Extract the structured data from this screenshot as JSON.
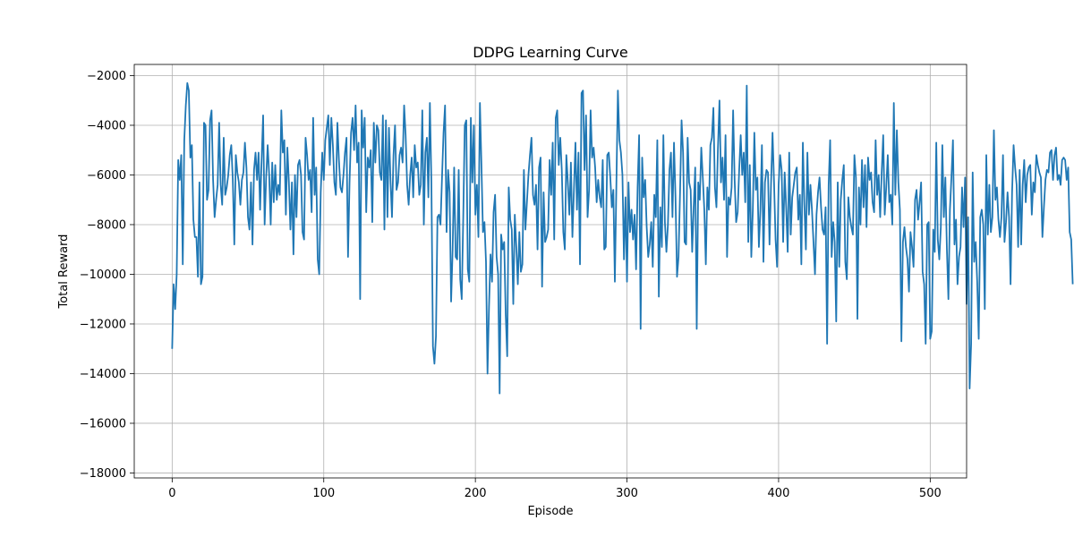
{
  "chart_data": {
    "type": "line",
    "title": "DDPG Learning Curve",
    "xlabel": "Episode",
    "ylabel": "Total Reward",
    "xlim": [
      -25,
      524
    ],
    "ylim": [
      -18200,
      -1550
    ],
    "xticks": [
      0,
      100,
      200,
      300,
      400,
      500
    ],
    "yticks": [
      -18000,
      -16000,
      -14000,
      -12000,
      -10000,
      -8000,
      -6000,
      -4000,
      -2000
    ],
    "grid": true,
    "legend": "none",
    "series": [
      {
        "color": "#1f77b4",
        "x_start": 0,
        "x_step": 1,
        "values": [
          -13000,
          -10400,
          -11400,
          -10000,
          -5400,
          -6200,
          -5200,
          -9600,
          -4600,
          -3200,
          -2300,
          -2600,
          -5300,
          -4800,
          -7800,
          -8500,
          -8500,
          -10100,
          -6300,
          -10400,
          -10100,
          -3900,
          -4000,
          -7000,
          -6600,
          -3800,
          -3400,
          -6200,
          -7700,
          -7000,
          -6400,
          -3900,
          -6400,
          -7200,
          -4500,
          -6800,
          -6500,
          -6000,
          -5200,
          -4800,
          -6200,
          -8800,
          -5200,
          -5900,
          -6300,
          -7200,
          -6200,
          -5900,
          -4700,
          -5700,
          -7700,
          -8200,
          -6300,
          -8800,
          -5800,
          -5100,
          -6200,
          -5100,
          -7400,
          -5400,
          -3600,
          -8000,
          -6100,
          -4800,
          -6000,
          -8000,
          -5500,
          -7100,
          -5600,
          -7000,
          -6400,
          -6800,
          -3400,
          -5100,
          -4600,
          -7600,
          -4900,
          -6300,
          -8200,
          -6300,
          -9200,
          -6000,
          -7700,
          -5600,
          -5400,
          -6000,
          -8300,
          -8600,
          -4500,
          -5200,
          -6200,
          -5800,
          -7500,
          -3700,
          -6800,
          -5700,
          -9400,
          -10000,
          -6700,
          -5100,
          -6200,
          -4600,
          -4100,
          -3600,
          -5600,
          -3700,
          -4800,
          -6300,
          -6800,
          -3900,
          -5400,
          -6500,
          -6700,
          -6000,
          -5100,
          -4500,
          -9300,
          -6300,
          -4300,
          -3700,
          -5000,
          -3200,
          -5500,
          -4700,
          -11000,
          -3400,
          -4900,
          -3700,
          -7500,
          -5300,
          -5700,
          -5000,
          -7900,
          -3900,
          -5500,
          -4000,
          -4200,
          -5900,
          -6200,
          -3600,
          -8200,
          -3800,
          -7700,
          -4100,
          -6200,
          -7700,
          -5200,
          -4000,
          -6600,
          -6300,
          -5200,
          -4900,
          -5500,
          -3200,
          -4400,
          -6400,
          -7200,
          -6000,
          -5300,
          -6900,
          -4800,
          -5700,
          -5500,
          -6800,
          -6400,
          -3400,
          -8000,
          -5100,
          -4500,
          -6900,
          -3100,
          -6300,
          -12900,
          -13600,
          -12500,
          -7700,
          -7600,
          -8000,
          -6100,
          -4300,
          -3200,
          -8300,
          -5800,
          -6700,
          -11100,
          -9000,
          -5700,
          -9300,
          -9400,
          -5800,
          -10200,
          -11000,
          -7700,
          -4000,
          -3800,
          -9800,
          -10300,
          -3700,
          -6300,
          -4000,
          -7600,
          -6400,
          -8500,
          -3100,
          -5600,
          -8300,
          -7900,
          -9500,
          -14000,
          -11300,
          -9200,
          -10300,
          -7500,
          -6800,
          -9300,
          -10000,
          -14800,
          -8400,
          -9000,
          -8700,
          -11600,
          -13300,
          -6500,
          -7800,
          -8200,
          -11200,
          -7600,
          -8900,
          -10400,
          -8300,
          -9900,
          -9600,
          -5800,
          -8200,
          -7100,
          -6000,
          -5200,
          -4500,
          -6800,
          -7200,
          -6400,
          -9000,
          -5700,
          -5300,
          -10500,
          -6700,
          -8700,
          -8500,
          -8200,
          -5400,
          -6800,
          -4700,
          -8600,
          -3700,
          -3400,
          -5600,
          -4500,
          -5800,
          -8300,
          -9000,
          -5200,
          -6300,
          -7600,
          -5500,
          -8500,
          -6600,
          -4700,
          -7400,
          -5100,
          -9600,
          -2700,
          -2600,
          -5800,
          -3600,
          -7700,
          -6600,
          -3400,
          -5300,
          -4900,
          -5700,
          -7100,
          -6200,
          -6900,
          -7300,
          -5400,
          -9000,
          -8900,
          -5200,
          -5100,
          -6100,
          -7300,
          -6600,
          -10300,
          -6400,
          -2600,
          -4600,
          -5100,
          -6000,
          -9400,
          -6900,
          -10300,
          -6300,
          -8300,
          -7400,
          -8600,
          -7600,
          -9800,
          -6500,
          -4400,
          -12200,
          -5300,
          -6900,
          -6200,
          -8100,
          -9300,
          -8800,
          -7900,
          -9700,
          -6800,
          -7700,
          -4600,
          -10900,
          -7300,
          -8900,
          -4400,
          -7900,
          -9100,
          -8000,
          -5800,
          -5100,
          -7700,
          -4700,
          -6900,
          -10100,
          -9300,
          -6700,
          -3800,
          -5100,
          -8700,
          -8800,
          -4500,
          -6300,
          -6600,
          -9100,
          -7300,
          -5700,
          -12200,
          -6300,
          -7000,
          -4900,
          -6100,
          -7400,
          -9600,
          -6500,
          -7400,
          -4800,
          -4500,
          -3300,
          -6500,
          -7300,
          -4900,
          -3000,
          -6300,
          -5300,
          -7000,
          -4400,
          -9300,
          -6900,
          -7200,
          -6500,
          -3400,
          -6200,
          -7900,
          -7500,
          -5800,
          -4400,
          -6000,
          -5100,
          -7100,
          -2400,
          -8700,
          -5600,
          -9300,
          -7400,
          -4300,
          -6600,
          -6100,
          -8900,
          -7400,
          -4800,
          -9500,
          -6300,
          -5800,
          -5900,
          -8800,
          -6400,
          -4300,
          -6300,
          -8600,
          -9700,
          -6400,
          -5200,
          -5800,
          -8700,
          -5900,
          -7300,
          -9100,
          -5100,
          -8400,
          -6900,
          -6400,
          -5900,
          -5700,
          -7800,
          -6800,
          -9600,
          -4700,
          -7200,
          -9000,
          -5100,
          -7600,
          -6400,
          -7400,
          -8700,
          -10000,
          -7600,
          -6700,
          -6100,
          -7300,
          -8200,
          -8400,
          -7300,
          -12800,
          -6400,
          -4600,
          -9300,
          -7900,
          -8700,
          -11900,
          -6300,
          -9700,
          -7000,
          -6200,
          -5600,
          -9500,
          -10200,
          -6900,
          -7700,
          -8100,
          -8400,
          -5200,
          -6100,
          -11800,
          -6500,
          -8000,
          -5400,
          -7300,
          -5600,
          -8100,
          -5300,
          -6200,
          -5900,
          -7100,
          -7500,
          -4600,
          -6800,
          -6000,
          -7700,
          -5900,
          -4400,
          -7600,
          -6500,
          -5200,
          -7100,
          -6800,
          -8000,
          -3100,
          -6800,
          -4200,
          -6300,
          -7400,
          -12700,
          -8700,
          -8100,
          -8900,
          -9400,
          -10700,
          -8300,
          -8900,
          -9700,
          -7000,
          -6600,
          -7800,
          -7100,
          -6300,
          -9900,
          -10400,
          -12800,
          -8000,
          -7900,
          -12600,
          -12300,
          -8200,
          -9100,
          -4700,
          -8600,
          -9400,
          -8100,
          -4800,
          -7700,
          -6100,
          -9000,
          -11000,
          -7400,
          -6100,
          -4600,
          -8800,
          -7800,
          -10400,
          -9300,
          -8900,
          -6500,
          -8100,
          -6100,
          -11200,
          -7700,
          -14600,
          -12800,
          -5900,
          -9500,
          -8700,
          -10300,
          -12600,
          -7700,
          -7400,
          -8000,
          -11400,
          -5200,
          -8400,
          -6400,
          -8300,
          -7700,
          -4200,
          -7000,
          -6500,
          -7800,
          -8500,
          -7700,
          -5200,
          -8700,
          -7900,
          -6700,
          -7700,
          -10400,
          -6700,
          -4800,
          -5700,
          -6400,
          -8900,
          -5800,
          -8800,
          -6400,
          -5400,
          -7100,
          -6000,
          -5700,
          -5600,
          -7600,
          -6300,
          -6700,
          -5200,
          -5600,
          -5900,
          -6100,
          -8500,
          -7300,
          -6200,
          -5800,
          -5900,
          -5100,
          -5000,
          -6200,
          -5200,
          -4900,
          -6200,
          -6000,
          -6400,
          -5400,
          -5300,
          -5400,
          -6200,
          -5700,
          -8300,
          -8600,
          -10400
        ]
      }
    ]
  }
}
